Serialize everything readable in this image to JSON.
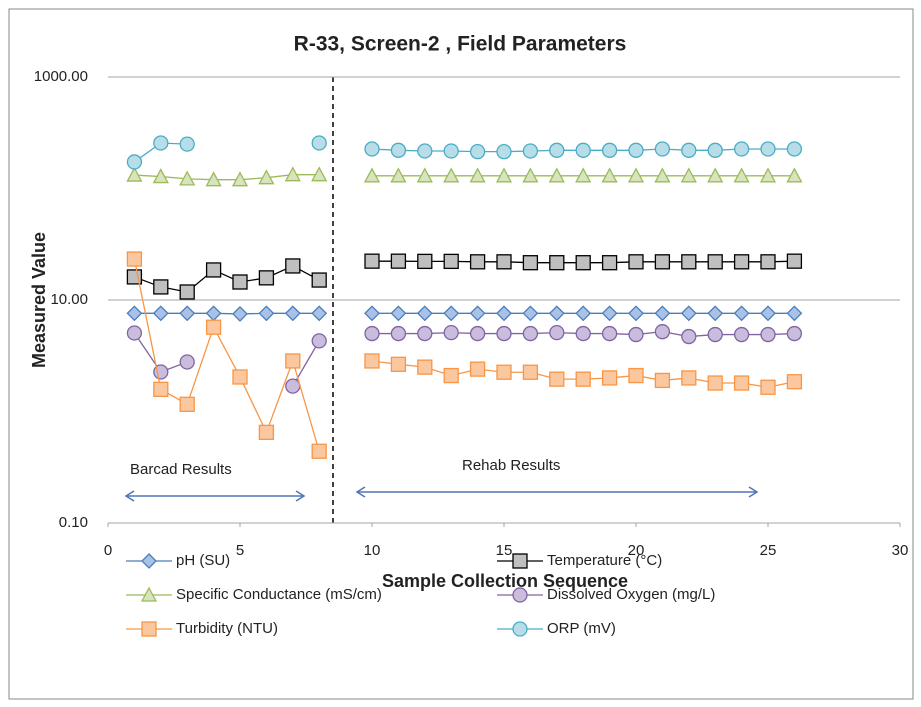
{
  "chart_data": {
    "type": "line",
    "title": "R-33, Screen-2 , Field Parameters",
    "x_label": "Sample Collection Sequence",
    "y_label": "Measured Value",
    "x": [
      1,
      2,
      3,
      4,
      5,
      6,
      7,
      8,
      9,
      10,
      11,
      12,
      13,
      14,
      15,
      16,
      17,
      18,
      19,
      20,
      21,
      22,
      23,
      24,
      25,
      26
    ],
    "xlim": [
      0,
      30
    ],
    "xticks": [
      0,
      5,
      10,
      15,
      20,
      25,
      30
    ],
    "ylim": [
      0.1,
      1000
    ],
    "yticks": [
      {
        "value": 0.1,
        "label": "0.10"
      },
      {
        "value": 10,
        "label": "10.00"
      },
      {
        "value": 1000,
        "label": "1000.00"
      }
    ],
    "y_scale": "log",
    "grid": true,
    "legend": "bottom",
    "annotations": [
      "Barcad Results",
      "Rehab Results"
    ],
    "series": [
      {
        "name": "pH (SU)",
        "color": "#4a7ebb",
        "fill": "#a9c1e6",
        "marker": "diamond",
        "values": [
          7.6,
          7.6,
          7.6,
          7.6,
          7.5,
          7.6,
          7.6,
          7.6,
          null,
          7.6,
          7.6,
          7.6,
          7.6,
          7.6,
          7.6,
          7.6,
          7.6,
          7.6,
          7.6,
          7.6,
          7.6,
          7.6,
          7.6,
          7.6,
          7.6,
          7.6
        ]
      },
      {
        "name": "Temperature (°C)",
        "color": "#000000",
        "fill": "#bfbfbf",
        "marker": "square",
        "values": [
          16.1,
          13.1,
          11.8,
          18.6,
          14.5,
          15.8,
          20.2,
          15.1,
          null,
          22.3,
          22.3,
          22.2,
          22.2,
          22.0,
          22.0,
          21.6,
          21.6,
          21.6,
          21.6,
          22.0,
          22.0,
          22.0,
          22.0,
          22.0,
          22.0,
          22.3
        ]
      },
      {
        "name": "Specific Conductance (mS/cm)",
        "color": "#9bbb59",
        "fill": "#d7e4bd",
        "marker": "triangle",
        "values": [
          132,
          128,
          122,
          120,
          120,
          125,
          133,
          133,
          null,
          130,
          130,
          130,
          130,
          130,
          130,
          130,
          130,
          130,
          130,
          130,
          130,
          130,
          130,
          130,
          130,
          130
        ]
      },
      {
        "name": "Dissolved Oxygen (mg/L)",
        "color": "#8064a2",
        "fill": "#c9bcdc",
        "marker": "circle",
        "values": [
          5.06,
          2.26,
          2.78,
          null,
          null,
          null,
          1.69,
          4.3,
          null,
          5.0,
          5.0,
          5.0,
          5.1,
          5.0,
          5.0,
          5.0,
          5.1,
          5.0,
          5.0,
          4.9,
          5.2,
          4.7,
          4.9,
          4.9,
          4.9,
          5.0
        ]
      },
      {
        "name": "Turbidity (NTU)",
        "color": "#f79646",
        "fill": "#fbc79f",
        "marker": "square",
        "values": [
          23.3,
          1.58,
          1.16,
          5.7,
          2.04,
          0.65,
          2.84,
          0.44,
          null,
          2.84,
          2.65,
          2.5,
          2.1,
          2.4,
          2.25,
          2.25,
          1.95,
          1.95,
          2.0,
          2.1,
          1.9,
          2.0,
          1.8,
          1.8,
          1.65,
          1.85
        ]
      },
      {
        "name": "ORP (mV)",
        "color": "#4bacc6",
        "fill": "#b7dee8",
        "marker": "circle",
        "values": [
          173,
          256,
          250,
          null,
          null,
          null,
          null,
          256,
          null,
          226,
          220,
          217,
          217,
          214,
          214,
          217,
          220,
          220,
          220,
          220,
          226,
          220,
          220,
          226,
          226,
          226
        ]
      }
    ]
  }
}
